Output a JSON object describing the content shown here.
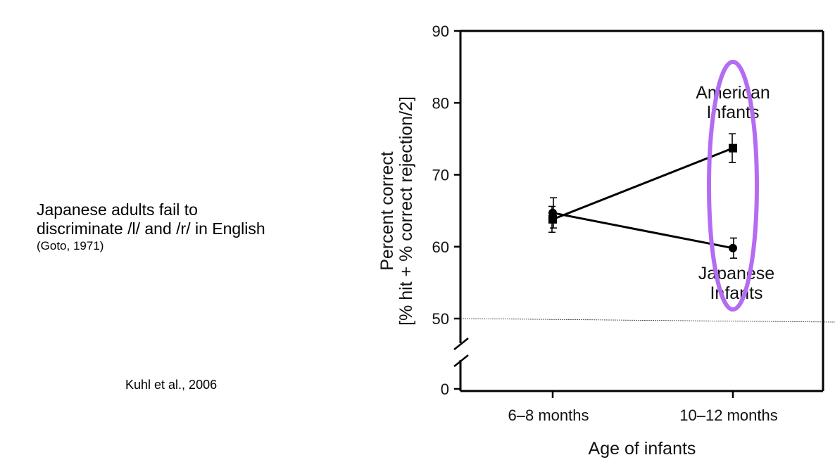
{
  "caption": {
    "line1": "Japanese adults fail to",
    "line2": "discriminate /l/ and /r/ in English",
    "citation": "(Goto, 1971)"
  },
  "credit": "Kuhl et al., 2006",
  "chart_data": {
    "type": "line",
    "xlabel": "Age of infants",
    "ylabel_line1": "Percent correct",
    "ylabel_line2": "[% hit + % correct rejection/2]",
    "categories": [
      "6–8 months",
      "10–12 months"
    ],
    "y_ticks": [
      0,
      50,
      60,
      70,
      80,
      90
    ],
    "y_axis_break": true,
    "ylim_upper": [
      50,
      90
    ],
    "chance_line": 50,
    "grid": false,
    "series": [
      {
        "name_lines": [
          "American",
          "Infants"
        ],
        "marker": "square",
        "values": [
          63.8,
          73.7
        ],
        "error": [
          1.8,
          2.0
        ]
      },
      {
        "name_lines": [
          "Japanese",
          "Infants"
        ],
        "marker": "circle",
        "values": [
          64.7,
          59.8
        ],
        "error": [
          2.1,
          1.4
        ]
      }
    ],
    "highlight": {
      "category": "10–12 months",
      "shape": "ellipse",
      "color": "#b36cf2"
    },
    "colors": {
      "ink": "#000000",
      "highlight": "#b36cf2"
    }
  }
}
